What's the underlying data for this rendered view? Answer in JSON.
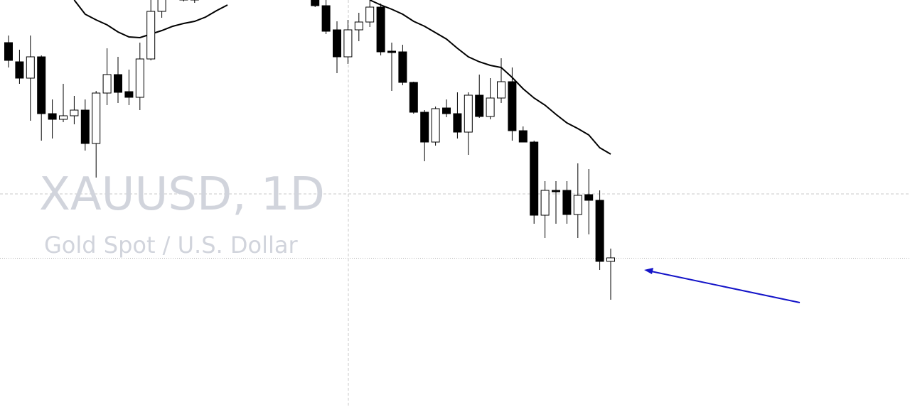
{
  "chart_data": {
    "type": "candlestick",
    "title": "XAUUSD, 1D",
    "subtitle": "Gold Spot / U.S. Dollar",
    "categories": [
      null,
      null,
      null,
      null,
      null,
      null,
      null,
      null,
      null,
      null,
      null,
      null,
      null,
      null,
      null,
      null,
      null,
      null,
      null,
      null,
      null,
      null,
      null,
      null,
      null,
      null,
      null,
      null,
      null,
      null,
      null,
      null,
      null,
      null,
      null,
      null,
      null,
      null,
      null,
      null,
      null,
      null,
      null,
      null,
      null,
      null,
      null,
      null,
      null,
      null,
      null,
      null,
      null,
      null,
      null,
      null
    ],
    "open": [
      513,
      486,
      463,
      493,
      413,
      405,
      410,
      418,
      371,
      442,
      468,
      444,
      436,
      490,
      557,
      null,
      573,
      573,
      null,
      null,
      null,
      null,
      null,
      null,
      null,
      null,
      null,
      null,
      583,
      565,
      531,
      493,
      531,
      542,
      563,
      501,
      500,
      457,
      415,
      373,
      421,
      413,
      387,
      439,
      409,
      435,
      458,
      389,
      373,
      270,
      305,
      305,
      271,
      299,
      291,
      205
    ],
    "high": [
      523,
      503,
      523,
      495,
      433,
      455,
      438,
      433,
      445,
      505,
      493,
      475,
      513,
      573,
      590,
      null,
      585,
      588,
      null,
      null,
      null,
      null,
      null,
      null,
      null,
      null,
      null,
      null,
      590,
      575,
      543,
      545,
      555,
      573,
      568,
      513,
      510,
      458,
      418,
      423,
      433,
      443,
      443,
      468,
      463,
      491,
      478,
      395,
      375,
      318,
      318,
      318,
      343,
      335,
      305,
      223
    ],
    "low": [
      478,
      455,
      403,
      375,
      378,
      401,
      398,
      361,
      323,
      425,
      428,
      425,
      418,
      488,
      548,
      null,
      571,
      569,
      null,
      null,
      null,
      null,
      null,
      null,
      null,
      null,
      null,
      null,
      563,
      525,
      470,
      483,
      515,
      535,
      495,
      445,
      453,
      413,
      346,
      368,
      408,
      378,
      355,
      407,
      405,
      428,
      375,
      373,
      258,
      238,
      258,
      258,
      238,
      243,
      193,
      151
    ],
    "close": [
      488,
      463,
      493,
      413,
      405,
      410,
      418,
      371,
      442,
      468,
      443,
      436,
      490,
      557,
      583,
      null,
      578,
      583,
      null,
      null,
      null,
      null,
      null,
      null,
      null,
      null,
      null,
      null,
      565,
      529,
      493,
      531,
      542,
      563,
      500,
      499,
      457,
      415,
      373,
      420,
      413,
      387,
      439,
      409,
      435,
      458,
      389,
      373,
      270,
      305,
      303,
      271,
      298,
      291,
      205,
      210
    ],
    "up_color": "#ffffff",
    "down_color": "#000000",
    "ma": {
      "color": "#000000",
      "values": [
        null,
        null,
        null,
        null,
        null,
        null,
        573,
        553,
        545,
        538,
        528,
        521,
        520,
        525,
        530,
        536,
        540,
        543,
        549,
        558,
        566,
        null,
        null,
        null,
        null,
        null,
        null,
        null,
        null,
        null,
        null,
        null,
        null,
        573,
        566,
        560,
        553,
        543,
        536,
        527,
        518,
        505,
        493,
        486,
        481,
        478,
        464,
        448,
        435,
        425,
        412,
        400,
        392,
        383,
        365,
        356
      ]
    },
    "ylim": [
      0,
      573
    ]
  }
}
